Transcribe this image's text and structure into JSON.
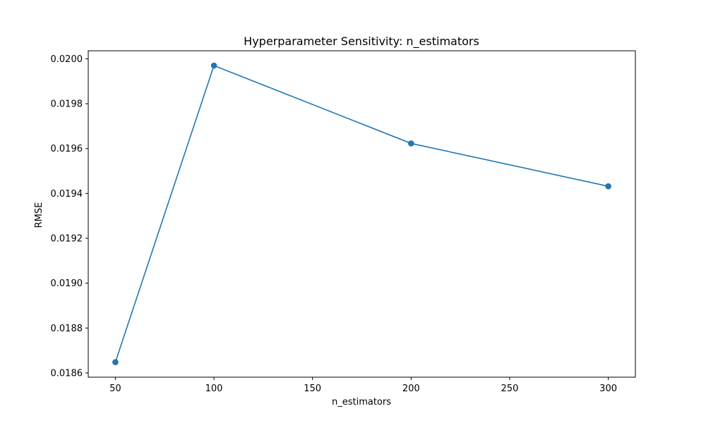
{
  "chart_data": {
    "type": "line",
    "title": "Hyperparameter Sensitivity: n_estimators",
    "xlabel": "n_estimators",
    "ylabel": "RMSE",
    "x": [
      50,
      100,
      200,
      300
    ],
    "series": [
      {
        "values": [
          0.018648,
          0.01997,
          0.019623,
          0.019432
        ],
        "color": "#1f77b4",
        "marker": "circle"
      }
    ],
    "xlim": [
      36.25,
      313.75
    ],
    "ylim": [
      0.018581,
      0.020036
    ],
    "xticks": [
      50,
      100,
      150,
      200,
      250,
      300
    ],
    "yticks": [
      0.0186,
      0.0188,
      0.019,
      0.0192,
      0.0194,
      0.0196,
      0.0198,
      0.02
    ],
    "ytick_labels": [
      "0.0186",
      "0.0188",
      "0.0190",
      "0.0192",
      "0.0194",
      "0.0196",
      "0.0198",
      "0.0200"
    ],
    "grid": false,
    "legend": false
  }
}
